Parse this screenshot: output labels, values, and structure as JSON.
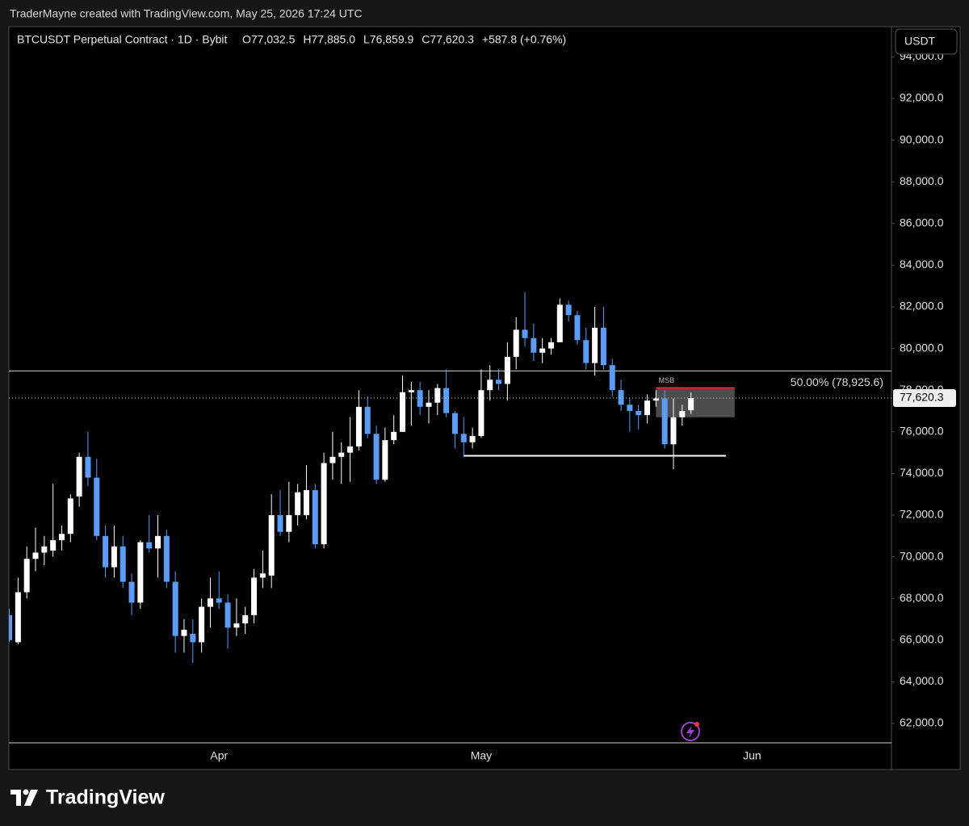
{
  "header": {
    "credit": "TraderMayne created with TradingView.com, May 25, 2026 17:24 UTC",
    "brand": "TradingView"
  },
  "chart_data": {
    "type": "candlestick",
    "title": "BTCUSDT Perpetual Contract · 1D · Bybit",
    "ohlc_labels": [
      "O77,032.5",
      "H77,885.0",
      "L76,859.9",
      "C77,620.3",
      "+587.8 (+0.76%)"
    ],
    "currency": "USDT",
    "up_color": "#ffffff",
    "down_color": "#5b9cf6",
    "categories": [
      null,
      null,
      null,
      null,
      null,
      null,
      null,
      null,
      null,
      null,
      null,
      null,
      null,
      null,
      null,
      null,
      null,
      null,
      null,
      null,
      null,
      null,
      null,
      null,
      "Apr",
      null,
      null,
      null,
      null,
      null,
      null,
      null,
      null,
      null,
      null,
      null,
      null,
      null,
      null,
      null,
      null,
      null,
      null,
      null,
      null,
      null,
      null,
      null,
      null,
      null,
      null,
      null,
      null,
      null,
      "May",
      null,
      null,
      null,
      null,
      null,
      null,
      null,
      null,
      null,
      null,
      null,
      null,
      null,
      null,
      null,
      null,
      null,
      null,
      null,
      null,
      null,
      null,
      null,
      null,
      null,
      null,
      null,
      null,
      null,
      null,
      "Jun",
      null,
      null,
      null,
      null,
      null,
      null,
      null,
      null,
      null,
      null,
      null,
      null,
      null,
      null,
      null
    ],
    "open": [
      67200,
      65900,
      68300,
      69900,
      70200,
      70300,
      70800,
      71100,
      72900,
      74800,
      73800,
      71000,
      69500,
      70500,
      68800,
      67800,
      70700,
      70400,
      71000,
      68800,
      66200,
      66300,
      65900,
      67600,
      68000,
      67800,
      66600,
      66800,
      67200,
      69000,
      69100,
      72000,
      71200,
      72000,
      72000,
      73200,
      70600,
      74500,
      74800,
      75000,
      75300,
      77200,
      75900,
      73700,
      75600,
      76000,
      77900,
      78000,
      77200,
      77400,
      78100,
      76900,
      75900,
      75500,
      75800,
      78000,
      78500,
      78300,
      79600,
      80900,
      80500,
      79800,
      80000,
      80300,
      82100,
      81600,
      80400,
      79300,
      81000,
      79200,
      78000,
      77300,
      77000,
      76800,
      77500,
      77600,
      75400,
      76700,
      77032.5,
      null,
      null,
      null,
      null,
      null,
      null,
      null,
      null,
      null,
      null,
      null,
      null,
      null,
      null,
      null,
      null,
      null,
      null,
      null,
      null,
      null,
      null
    ],
    "high": [
      67500,
      69000,
      70500,
      71400,
      71000,
      73500,
      71500,
      73000,
      75000,
      76000,
      74700,
      71500,
      71500,
      71000,
      69200,
      70800,
      72000,
      72000,
      71300,
      69300,
      67000,
      67000,
      68000,
      69000,
      69300,
      68200,
      68000,
      67600,
      69400,
      70300,
      73000,
      73200,
      73600,
      73500,
      74400,
      73500,
      75000,
      76000,
      75500,
      76700,
      78000,
      77700,
      76300,
      76200,
      76800,
      78700,
      78400,
      78400,
      78000,
      78300,
      79000,
      77000,
      76700,
      76200,
      79000,
      79200,
      79000,
      80300,
      81500,
      82700,
      81200,
      80500,
      80500,
      82400,
      82300,
      81800,
      81000,
      82000,
      82000,
      79500,
      78500,
      77600,
      77300,
      77800,
      78000,
      78000,
      77600,
      77300,
      77885.0,
      null,
      null,
      null,
      null,
      null,
      null,
      null,
      null,
      null,
      null,
      null,
      null,
      null,
      null,
      null,
      null,
      null,
      null,
      null,
      null,
      null,
      null
    ],
    "low": [
      65900,
      65800,
      68000,
      69300,
      69600,
      70000,
      70300,
      70700,
      72400,
      73400,
      70800,
      69000,
      69000,
      68500,
      67200,
      67500,
      70200,
      69000,
      68500,
      65400,
      65400,
      64900,
      65400,
      66600,
      67500,
      65600,
      66200,
      66300,
      66800,
      68500,
      68500,
      71000,
      70700,
      71500,
      71800,
      70400,
      70400,
      73700,
      73500,
      73600,
      75100,
      75700,
      73500,
      73600,
      75400,
      76000,
      76300,
      76800,
      76400,
      76800,
      76700,
      75200,
      74800,
      75200,
      75700,
      77500,
      78000,
      77500,
      79000,
      80100,
      79400,
      79300,
      79700,
      80300,
      81300,
      80200,
      79000,
      78700,
      79000,
      77700,
      77000,
      76000,
      76100,
      76400,
      77200,
      75200,
      74200,
      76300,
      76859.9,
      null,
      null,
      null,
      null,
      null,
      null,
      null,
      null,
      null,
      null,
      null,
      null,
      null,
      null,
      null,
      null,
      null,
      null,
      null,
      null,
      null,
      null
    ],
    "close": [
      66000,
      68300,
      69900,
      70200,
      70500,
      70800,
      71100,
      72800,
      74800,
      73800,
      71000,
      69500,
      70500,
      68800,
      67800,
      70700,
      70400,
      71000,
      68800,
      66200,
      66500,
      65900,
      67600,
      68000,
      67800,
      66600,
      66800,
      67200,
      69000,
      69200,
      72000,
      71200,
      72000,
      73100,
      73200,
      70600,
      74500,
      74800,
      75000,
      75300,
      77200,
      75900,
      73700,
      75600,
      76000,
      77900,
      78000,
      77200,
      77400,
      78100,
      76900,
      75900,
      75500,
      75800,
      78000,
      78500,
      78300,
      79600,
      80900,
      80500,
      79800,
      80000,
      80300,
      82100,
      81600,
      80400,
      79300,
      81000,
      79200,
      78000,
      77300,
      77000,
      76800,
      77500,
      77600,
      75400,
      76700,
      77000,
      77620.3,
      null,
      null,
      null,
      null,
      null,
      null,
      null,
      null,
      null,
      null,
      null,
      null,
      null,
      null,
      null,
      null,
      null,
      null,
      null,
      null,
      null,
      null
    ],
    "ylim": [
      61070,
      95450
    ],
    "yticks": [
      {
        "value": 62000,
        "label": "62,000.0"
      },
      {
        "value": 64000,
        "label": "64,000.0"
      },
      {
        "value": 66000,
        "label": "66,000.0"
      },
      {
        "value": 68000,
        "label": "68,000.0"
      },
      {
        "value": 70000,
        "label": "70,000.0"
      },
      {
        "value": 72000,
        "label": "72,000.0"
      },
      {
        "value": 74000,
        "label": "74,000.0"
      },
      {
        "value": 76000,
        "label": "76,000.0"
      },
      {
        "value": 78000,
        "label": "78,000.0"
      },
      {
        "value": 80000,
        "label": "80,000.0"
      },
      {
        "value": 82000,
        "label": "82,000.0"
      },
      {
        "value": 84000,
        "label": "84,000.0"
      },
      {
        "value": 86000,
        "label": "86,000.0"
      },
      {
        "value": 88000,
        "label": "88,000.0"
      },
      {
        "value": 90000,
        "label": "90,000.0"
      },
      {
        "value": 92000,
        "label": "92,000.0"
      },
      {
        "value": 94000,
        "label": "94,000.0"
      }
    ],
    "level_line": {
      "value": 78925.6,
      "label": "50.00% (78,925.6)"
    },
    "msb": {
      "value": 78100,
      "label": "MSB",
      "from_index": 74,
      "to_index": 83
    },
    "zone": {
      "top": 78050,
      "bottom": 76700,
      "from_index": 74,
      "to_index": 83
    },
    "support_line": {
      "value": 74850,
      "from_index": 52,
      "to_index": 82
    },
    "last_price": {
      "value": 77620.3,
      "label": "77,620.3"
    }
  }
}
